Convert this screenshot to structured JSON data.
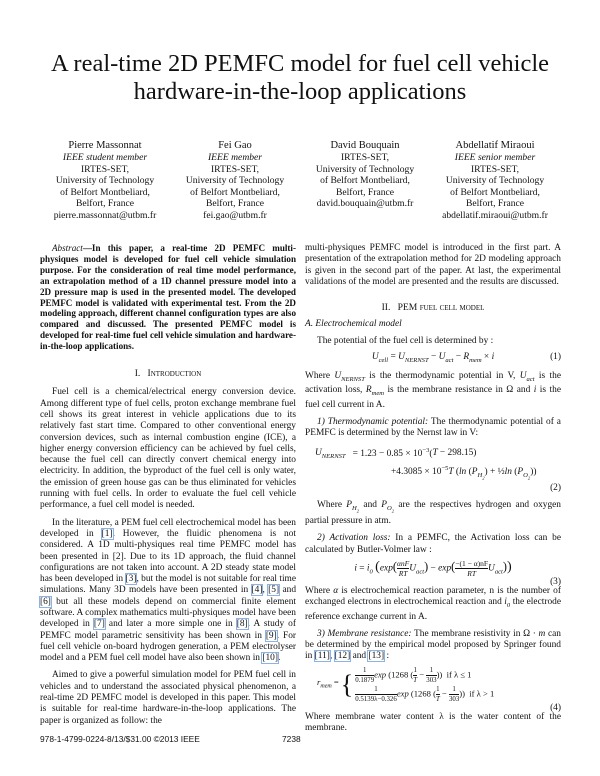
{
  "title": [
    "A real-time 2D PEMFC model for fuel cell vehicle",
    "hardware-in-the-loop applications"
  ],
  "authors": [
    {
      "name": "Pierre Massonnat",
      "role": "IEEE student member",
      "lines": [
        "IRTES-SET,",
        "University of Technology",
        "of Belfort Montbeliard,",
        "Belfort, France"
      ],
      "email": "pierre.massonnat@utbm.fr"
    },
    {
      "name": "Fei Gao",
      "role": "IEEE member",
      "lines": [
        "IRTES-SET,",
        "University of Technology",
        "of Belfort Montbeliard,",
        "Belfort, France"
      ],
      "email": "fei.gao@utbm.fr"
    },
    {
      "name": "David Bouquain",
      "role": "",
      "lines": [
        "IRTES-SET,",
        "University of Technology",
        "of Belfort Montbeliard,",
        "Belfort, France"
      ],
      "email": "david.bouquain@utbm.fr"
    },
    {
      "name": "Abdellatif Miraoui",
      "role": "IEEE senior member",
      "lines": [
        "IRTES-SET,",
        "University of Technology",
        "of Belfort Montbeliard,",
        "Belfort, France"
      ],
      "email": "abdellatif.miraoui@utbm.fr"
    }
  ],
  "abstract": {
    "label": "Abstract",
    "text": "—In this paper, a real-time 2D PEMFC multi-physiques model is developed for fuel cell vehicle simulation purpose. For the consideration of real time model performance, an extrapolation method of a 1D channel pressure model into a 2D pressure map is used in the presented model. The developed PEMFC model is validated with experimental test. From the 2D modeling approach, different channel configuration types are also compared and discussed. The presented PEMFC model is developed for real-time fuel cell vehicle simulation and hardware-in-the-loop applications."
  },
  "section1": {
    "number": "I.",
    "title": "Introduction",
    "p1": "Fuel cell is a chemical/electrical energy conversion device. Among different type of fuel cells, proton exchange membrane fuel cell shows its great interest in vehicle applications due to its relatively fast start time. Compared to other conventional energy conversion devices, such as internal combustion engine (ICE), a higher energy conversion efficiency can be achieved by fuel cells, because the fuel cell can directly convert chemical energy into electricity. In addition, the byproduct of the fuel cell is only water, the emission of green house gas can be thus eliminated for vehicles running with fuel cells. In order to evaluate the fuel cell vehicle performance, a fuel cell model is needed.",
    "p2": [
      {
        "t": "In the literature, a PEM fuel cell electrochemical model has been developed in "
      },
      {
        "r": "[1]"
      },
      {
        "t": ". However, the fluidic phenomena is not considered. A 1D multi-physiques real time PEMFC model has been presented in [2]. Due to its 1D approach, the fluid channel configurations are not taken into account. A 2D steady state model has been developed in "
      },
      {
        "r": "[3]"
      },
      {
        "t": ", but the model is not suitable for real time simulations. Many 3D models have been presented in "
      },
      {
        "r": "[4]"
      },
      {
        "t": ", "
      },
      {
        "r": "[5]"
      },
      {
        "t": " and "
      },
      {
        "r": "[6]"
      },
      {
        "t": " but all these models depend on commercial finite element software. A complex mathematics multi-physiques model have been developed in "
      },
      {
        "r": "[7]"
      },
      {
        "t": " and later a more simple one in "
      },
      {
        "r": "[8]"
      },
      {
        "t": ". A study of PEMFC model parametric sensitivity has been shown in "
      },
      {
        "r": "[9]"
      },
      {
        "t": ". For fuel cell vehicle on-board hydrogen generation, a PEM electrolyser model and a PEM fuel cell model have also been shown in "
      },
      {
        "r": "[10]"
      },
      {
        "t": "."
      }
    ],
    "p3": "Aimed to give a powerful simulation model for PEM fuel cell in vehicles and to understand the associated physical phenomenon, a real-time 2D PEMFC model is developed in this paper. This model is suitable for real-time hardware-in-the-loop applications. The paper is organized as follow: the"
  },
  "right": {
    "p0": "multi-physiques PEMFC model is introduced in the first part. A presentation of the extrapolation method for 2D modeling approach is given in the second part of the paper. At last, the experimental validations of the model are presented and the results are discussed.",
    "sec2_number": "II.",
    "sec2_title_a": "PEM",
    "sec2_title_b": "fuel cell model",
    "subA": "A. Electrochemical model",
    "pA": "The potential of the fuel cell is determined by :",
    "eq1_num": "(1)",
    "pWhere": [
      "Where ",
      " is the thermodynamic potential in V, ",
      " is the activation loss, ",
      " is the membrane resistance in Ω and ",
      " is the fuel cell current in A."
    ],
    "s1_label": "1) Thermodynamic potential:",
    "s1_text": " The thermodynamic potential of a PEMFC is determined by the Nernst law in V:",
    "eq2_num": "(2)",
    "p_after2": [
      "Where ",
      " and ",
      " are the respectives hydrogen and oxygen partial pressure in atm."
    ],
    "s2_label": "2) Activation loss:",
    "s2_text": " In a PEMFC, the Activation loss can be calculated by Butler-Volmer law :",
    "eq3_num": "(3)",
    "p_after3": [
      "Where ",
      " is electrochemical reaction parameter, n is the number of exchanged electrons in electrochemical reaction and ",
      " the electrode reference exchange current in A."
    ],
    "s3_label": "3) Membrane resistance:",
    "s3_text": [
      " The membrane resistivity in Ω · ",
      " can be determined by the empirical model proposed by Springer found in ",
      "[11]",
      ", ",
      "[12]",
      " and ",
      "[13]",
      " :"
    ],
    "eq4_num": "(4)",
    "p_after4": "Where membrane water content λ is the water content of the membrane."
  },
  "footer": {
    "isbn": "978-1-4799-0224-8/13/$31.00 ©2013 IEEE",
    "page": "7238"
  },
  "colors": {
    "citation_box": "#8ab4e8",
    "text": "#111111"
  }
}
